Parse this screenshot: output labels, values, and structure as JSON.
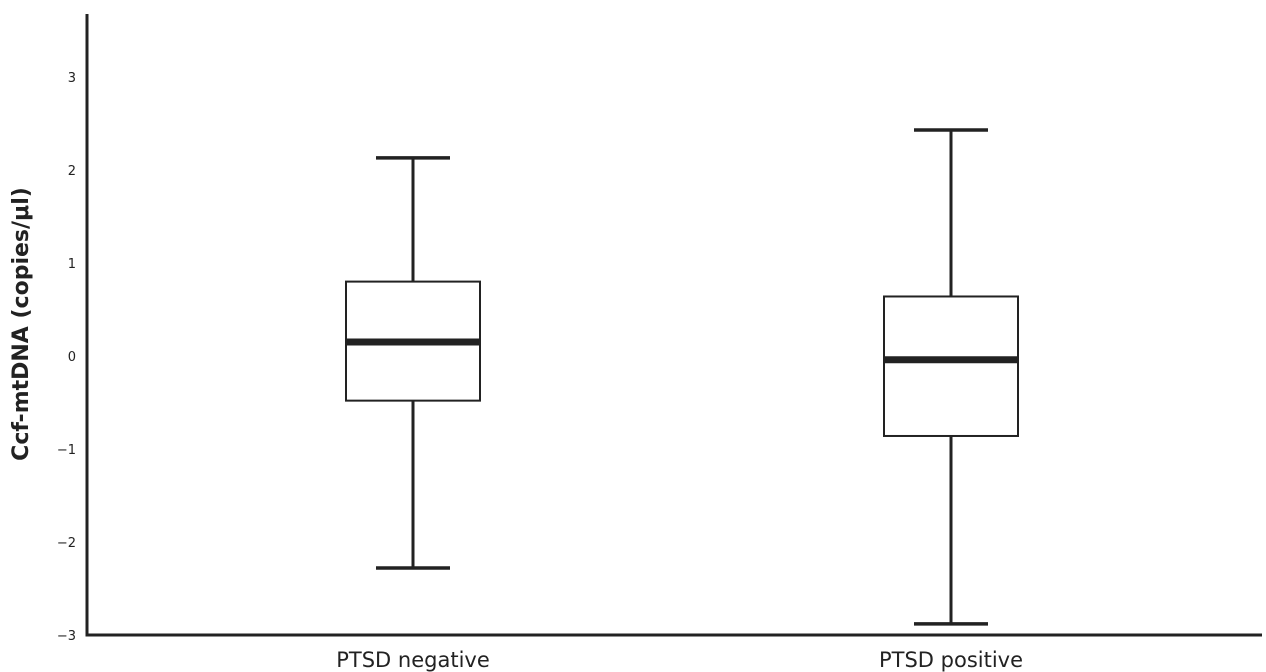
{
  "chart_data": {
    "type": "boxplot",
    "title": "",
    "xlabel": "",
    "ylabel": "Ccf-mtDNA (copies/μl)",
    "ylim": [
      -3,
      3.7
    ],
    "yticks": [
      3,
      2,
      1,
      0,
      -1,
      -2,
      -3
    ],
    "ytick_labels": [
      "3",
      "2",
      "1",
      "0",
      "−1",
      "−2",
      "−3"
    ],
    "grid": false,
    "categories": [
      "PTSD negative",
      "PTSD positive"
    ],
    "boxes": [
      {
        "category": "PTSD negative",
        "whisker_low": -2.28,
        "q1": -0.48,
        "median": 0.15,
        "q3": 0.8,
        "whisker_high": 2.13
      },
      {
        "category": "PTSD positive",
        "whisker_low": -2.88,
        "q1": -0.86,
        "median": -0.04,
        "q3": 0.64,
        "whisker_high": 2.43
      }
    ],
    "colors": {
      "box_fill": "#ffffff",
      "stroke": "#222222"
    }
  }
}
